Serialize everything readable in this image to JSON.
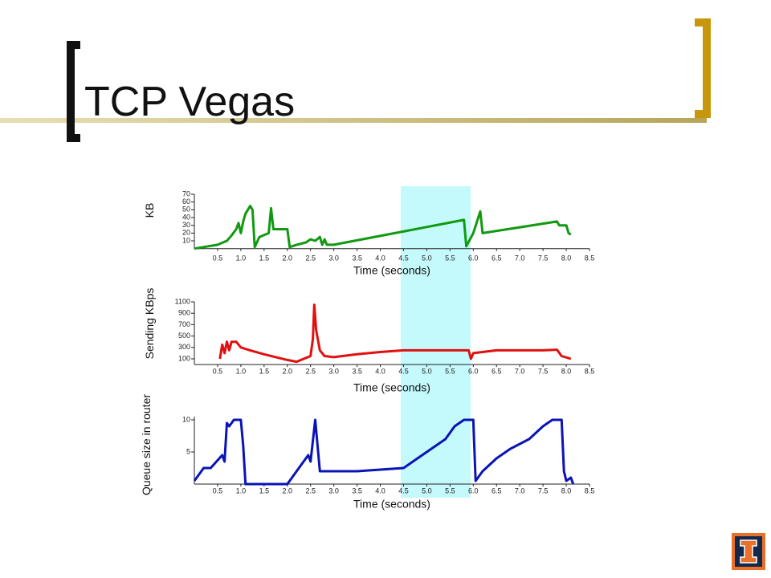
{
  "title": "TCP Vegas",
  "chart_data": [
    {
      "type": "line",
      "xlabel": "Time (seconds)",
      "ylabel": "KB",
      "xlim": [
        0,
        8.5
      ],
      "ylim": [
        0,
        70
      ],
      "xticks": [
        0.5,
        {
          "value": 1,
          "label": "1.0"
        },
        1.5,
        {
          "value": 2,
          "label": "2.0"
        },
        2.5,
        {
          "value": 3,
          "label": "3.0"
        },
        3.5,
        {
          "value": 4,
          "label": "4.0"
        },
        4.5,
        {
          "value": 5,
          "label": "5.0"
        },
        5.5,
        {
          "value": 6,
          "label": "6.0"
        },
        6.5,
        {
          "value": 7,
          "label": "7.0"
        },
        7.5,
        {
          "value": 8,
          "label": "8.0"
        },
        8.5
      ],
      "yticks": [
        10,
        20,
        30,
        40,
        50,
        60,
        70
      ],
      "series": [
        {
          "color": "#119911",
          "x": [
            0,
            0.3,
            0.5,
            0.7,
            0.8,
            0.9,
            0.95,
            1.0,
            1.05,
            1.1,
            1.2,
            1.25,
            1.3,
            1.4,
            1.6,
            1.65,
            1.7,
            2.0,
            2.05,
            2.2,
            2.4,
            2.5,
            2.6,
            2.7,
            2.75,
            2.8,
            2.85,
            3.0,
            5.8,
            5.85,
            6.0,
            6.15,
            6.2,
            7.8,
            7.85,
            8.0,
            8.05,
            8.1
          ],
          "values": [
            0,
            3,
            5,
            10,
            17,
            25,
            33,
            20,
            35,
            45,
            55,
            50,
            2,
            15,
            20,
            52,
            25,
            25,
            2,
            5,
            8,
            12,
            10,
            15,
            5,
            12,
            5,
            5,
            37,
            3,
            20,
            48,
            20,
            35,
            30,
            30,
            20,
            18
          ]
        }
      ]
    },
    {
      "type": "line",
      "xlabel": "Time (seconds)",
      "ylabel": "Sending KBps",
      "xlim": [
        0,
        8.5
      ],
      "ylim": [
        0,
        1100
      ],
      "xticks": [
        0.5,
        {
          "value": 1,
          "label": "1.0"
        },
        1.5,
        {
          "value": 2,
          "label": "2.0"
        },
        2.5,
        {
          "value": 3,
          "label": "3.0"
        },
        3.5,
        {
          "value": 4,
          "label": "4.0"
        },
        4.5,
        {
          "value": 5,
          "label": "5.0"
        },
        5.5,
        {
          "value": 6,
          "label": "6.0"
        },
        6.5,
        {
          "value": 7,
          "label": "7.0"
        },
        7.5,
        {
          "value": 8,
          "label": "8.0"
        },
        8.5
      ],
      "yticks": [
        100,
        300,
        500,
        700,
        900,
        1100
      ],
      "series": [
        {
          "color": "#e01010",
          "x": [
            0.55,
            0.6,
            0.65,
            0.7,
            0.75,
            0.8,
            0.9,
            1.0,
            1.2,
            1.5,
            2.0,
            2.2,
            2.5,
            2.55,
            2.58,
            2.62,
            2.7,
            2.8,
            3.0,
            3.5,
            4.0,
            4.5,
            5.0,
            5.5,
            5.9,
            5.95,
            6.0,
            6.5,
            7.0,
            7.5,
            7.8,
            7.9,
            8.1
          ],
          "values": [
            100,
            350,
            200,
            400,
            250,
            400,
            400,
            300,
            250,
            180,
            80,
            50,
            150,
            450,
            1050,
            600,
            250,
            150,
            130,
            180,
            220,
            250,
            250,
            250,
            250,
            100,
            200,
            250,
            250,
            250,
            260,
            150,
            100
          ]
        }
      ]
    },
    {
      "type": "line",
      "xlabel": "Time (seconds)",
      "ylabel": "Queue size in router",
      "xlim": [
        0,
        8.5
      ],
      "ylim": [
        0,
        10.5
      ],
      "xticks": [
        0.5,
        {
          "value": 1,
          "label": "1.0"
        },
        1.5,
        {
          "value": 2,
          "label": "2.0"
        },
        2.5,
        {
          "value": 3,
          "label": "3.0"
        },
        3.5,
        {
          "value": 4,
          "label": "4.0"
        },
        4.5,
        {
          "value": 5,
          "label": "5.0"
        },
        5.5,
        {
          "value": 6,
          "label": "6.0"
        },
        6.5,
        {
          "value": 7,
          "label": "7.0"
        },
        7.5,
        {
          "value": 8,
          "label": "8.0"
        },
        8.5
      ],
      "yticks": [
        5,
        10
      ],
      "series": [
        {
          "color": "#0a14b4",
          "x": [
            0,
            0.2,
            0.35,
            0.6,
            0.65,
            0.7,
            0.75,
            0.85,
            1.0,
            1.05,
            1.1,
            2.0,
            2.2,
            2.45,
            2.5,
            2.6,
            2.7,
            3.5,
            4.5,
            4.6,
            4.8,
            5.0,
            5.2,
            5.4,
            5.6,
            5.8,
            6.0,
            6.05,
            6.2,
            6.5,
            6.8,
            7.2,
            7.5,
            7.7,
            7.9,
            7.95,
            8.0,
            8.1,
            8.15
          ],
          "values": [
            0.5,
            2.5,
            2.5,
            4.5,
            3.5,
            9.5,
            9,
            10,
            10,
            6,
            0,
            0,
            2,
            4.5,
            3.5,
            10,
            2,
            2,
            2.5,
            3,
            4,
            5,
            6,
            7,
            9,
            10,
            10,
            0.5,
            2,
            4,
            5.5,
            7,
            9,
            10,
            10,
            2,
            0.5,
            1,
            0
          ]
        }
      ]
    }
  ]
}
